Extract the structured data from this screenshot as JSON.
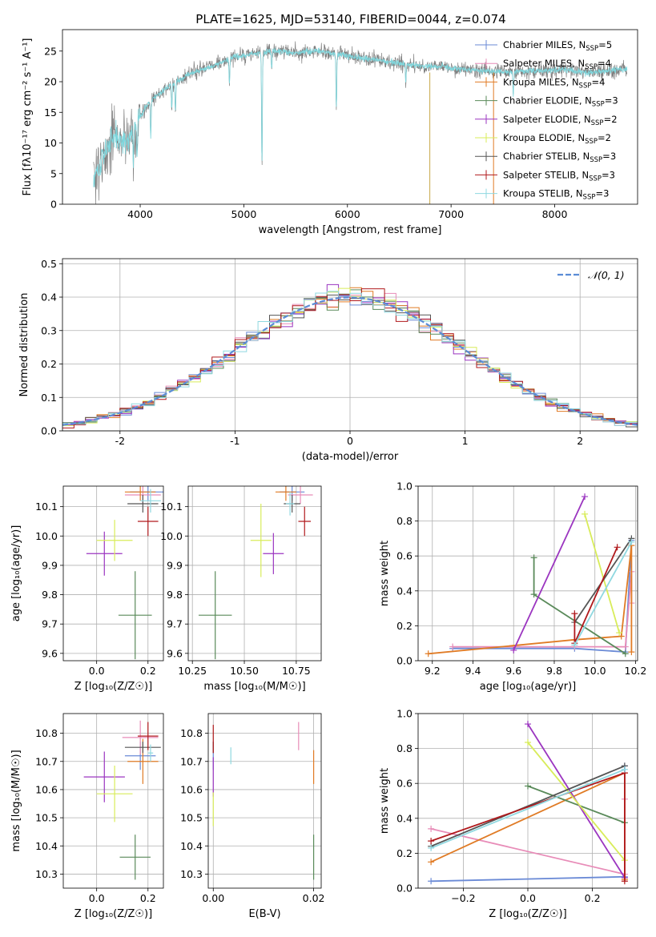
{
  "figure": {
    "title": "PLATE=1625, MJD=53140, FIBERID=0044, z=0.074"
  },
  "models": [
    {
      "name": "Chabrier MILES",
      "nssp": "5",
      "color": "#6a8ad6"
    },
    {
      "name": "Salpeter MILES",
      "nssp": "4",
      "color": "#e88cb8"
    },
    {
      "name": "Kroupa MILES",
      "nssp": "4",
      "color": "#e07b25"
    },
    {
      "name": "Chabrier ELODIE",
      "nssp": "3",
      "color": "#5a8a5a"
    },
    {
      "name": "Salpeter ELODIE",
      "nssp": "2",
      "color": "#9b35c0"
    },
    {
      "name": "Kroupa ELODIE",
      "nssp": "2",
      "color": "#d8ec5a"
    },
    {
      "name": "Chabrier STELIB",
      "nssp": "3",
      "color": "#555555"
    },
    {
      "name": "Salpeter STELIB",
      "nssp": "3",
      "color": "#b0191c"
    },
    {
      "name": "Kroupa STELIB",
      "nssp": "3",
      "color": "#8fd8e0"
    }
  ],
  "chart_data": [
    {
      "id": "spectrum",
      "type": "line",
      "xlabel": "wavelength [Angstrom, rest frame]",
      "ylabel": "Flux [fλ10⁻¹⁷ erg cm⁻² s⁻¹ A⁻¹]",
      "xlim": [
        3250,
        8800
      ],
      "ylim": [
        0,
        28.5
      ],
      "xticks": [
        4000,
        5000,
        6000,
        7000,
        8000
      ],
      "yticks": [
        0,
        5,
        10,
        15,
        20,
        25
      ],
      "legend": "right",
      "data_color": "#808080",
      "model_color": "#7fd6dc",
      "continuum": [
        [
          3550,
          4
        ],
        [
          3650,
          8
        ],
        [
          3750,
          11.5
        ],
        [
          3850,
          10
        ],
        [
          3950,
          13
        ],
        [
          4100,
          17
        ],
        [
          4300,
          19.5
        ],
        [
          4500,
          21.5
        ],
        [
          4700,
          22.5
        ],
        [
          4900,
          24
        ],
        [
          5100,
          24.5
        ],
        [
          5300,
          25
        ],
        [
          5500,
          24.7
        ],
        [
          5700,
          25
        ],
        [
          5900,
          24.5
        ],
        [
          6100,
          24
        ],
        [
          6300,
          23.5
        ],
        [
          6500,
          23
        ],
        [
          6700,
          22.5
        ],
        [
          6900,
          22.5
        ],
        [
          7100,
          22
        ],
        [
          7300,
          21.8
        ],
        [
          7500,
          21.5
        ],
        [
          7700,
          21.7
        ],
        [
          7900,
          21.8
        ],
        [
          8100,
          22
        ],
        [
          8300,
          21.5
        ],
        [
          8500,
          21.7
        ],
        [
          8700,
          22
        ]
      ],
      "absorption_features": [
        [
          3600,
          1
        ],
        [
          3934,
          6
        ],
        [
          3969,
          6
        ],
        [
          4102,
          6
        ],
        [
          4305,
          4
        ],
        [
          4340,
          5
        ],
        [
          4861,
          4
        ],
        [
          5175,
          18
        ],
        [
          5270,
          3
        ],
        [
          5893,
          9
        ],
        [
          6563,
          3
        ],
        [
          7600,
          4
        ]
      ],
      "spikes": [
        [
          6795,
          "#c8a84a"
        ],
        [
          7410,
          "#e07b25"
        ]
      ]
    },
    {
      "id": "residual-hist",
      "type": "bar",
      "xlabel": "(data-model)/error",
      "ylabel": "Normed distribution",
      "xlim": [
        -2.5,
        2.5
      ],
      "ylim": [
        0,
        0.515
      ],
      "xticks": [
        -2,
        -1,
        0,
        1,
        2
      ],
      "yticks": [
        0.0,
        0.1,
        0.2,
        0.3,
        0.4,
        0.5
      ],
      "grid": true,
      "legend": "top-right",
      "gaussian_label": "𝒩(0, 1)",
      "gaussian_color": "#5b8cd6",
      "bin_width": 0.1
    },
    {
      "id": "age-vs-Z",
      "type": "scatter",
      "xlabel": "Z [log₁₀(Z/Z☉)]",
      "ylabel": "age  [log₁₀(age/yr)]",
      "xlim": [
        -0.13,
        0.26
      ],
      "ylim": [
        9.575,
        10.17
      ],
      "xticks": [
        0.0,
        0.2
      ],
      "yticks": [
        9.6,
        9.7,
        9.8,
        9.9,
        10.0,
        10.1
      ],
      "grid": true,
      "points": [
        {
          "x": 0.2,
          "y": 10.15,
          "dx": 0.07,
          "dy": 0.03
        },
        {
          "x": 0.18,
          "y": 10.14,
          "dx": 0.07,
          "dy": 0.03
        },
        {
          "x": 0.17,
          "y": 10.15,
          "dx": 0.06,
          "dy": 0.03
        },
        {
          "x": 0.15,
          "y": 9.73,
          "dx": 0.065,
          "dy": 0.15
        },
        {
          "x": 0.03,
          "y": 9.94,
          "dx": 0.07,
          "dy": 0.075
        },
        {
          "x": 0.07,
          "y": 9.985,
          "dx": 0.07,
          "dy": 0.07
        },
        {
          "x": 0.18,
          "y": 10.11,
          "dx": 0.06,
          "dy": 0.03
        },
        {
          "x": 0.2,
          "y": 10.05,
          "dx": 0.04,
          "dy": 0.05
        },
        {
          "x": 0.21,
          "y": 10.12,
          "dx": 0.04,
          "dy": 0.04
        }
      ]
    },
    {
      "id": "age-vs-mass",
      "type": "scatter",
      "xlabel": "mass [log₁₀(M/M☉)]",
      "ylabel": "",
      "xlim": [
        10.23,
        10.87
      ],
      "ylim": [
        9.575,
        10.17
      ],
      "xticks": [
        10.25,
        10.5,
        10.75
      ],
      "yticks": [
        9.6,
        9.7,
        9.8,
        9.9,
        10.0,
        10.1
      ],
      "grid": true,
      "points": [
        {
          "x": 10.73,
          "y": 10.15,
          "dx": 0.06,
          "dy": 0.03
        },
        {
          "x": 10.77,
          "y": 10.14,
          "dx": 0.06,
          "dy": 0.03
        },
        {
          "x": 10.7,
          "y": 10.15,
          "dx": 0.05,
          "dy": 0.03
        },
        {
          "x": 10.36,
          "y": 9.73,
          "dx": 0.08,
          "dy": 0.15
        },
        {
          "x": 10.64,
          "y": 9.94,
          "dx": 0.05,
          "dy": 0.07
        },
        {
          "x": 10.58,
          "y": 9.985,
          "dx": 0.05,
          "dy": 0.125
        },
        {
          "x": 10.73,
          "y": 10.11,
          "dx": 0.04,
          "dy": 0.03
        },
        {
          "x": 10.79,
          "y": 10.05,
          "dx": 0.03,
          "dy": 0.05
        },
        {
          "x": 10.72,
          "y": 10.11,
          "dx": 0.02,
          "dy": 0.04
        }
      ]
    },
    {
      "id": "mass-weight-vs-age",
      "type": "line",
      "xlabel": "age  [log₁₀(age/yr)]",
      "ylabel": "mass weight",
      "xlim": [
        9.13,
        10.21
      ],
      "ylim": [
        0,
        1.0
      ],
      "xticks": [
        9.2,
        9.4,
        9.6,
        9.8,
        10.0,
        10.2
      ],
      "yticks": [
        0.0,
        0.2,
        0.4,
        0.6,
        0.8,
        1.0
      ],
      "grid": true,
      "series": [
        {
          "points": [
            [
              9.3,
              0.07
            ],
            [
              9.9,
              0.07
            ],
            [
              10.15,
              0.05
            ],
            [
              10.18,
              0.69
            ]
          ]
        },
        {
          "points": [
            [
              9.3,
              0.08
            ],
            [
              9.9,
              0.08
            ],
            [
              10.15,
              0.08
            ],
            [
              10.18,
              0.51
            ],
            [
              10.18,
              0.33
            ]
          ]
        },
        {
          "points": [
            [
              9.18,
              0.04
            ],
            [
              9.9,
              0.12
            ],
            [
              10.13,
              0.14
            ],
            [
              10.18,
              0.66
            ],
            [
              10.18,
              0.05
            ]
          ]
        },
        {
          "points": [
            [
              9.7,
              0.59
            ],
            [
              9.7,
              0.38
            ],
            [
              10.15,
              0.04
            ]
          ]
        },
        {
          "points": [
            [
              9.6,
              0.06
            ],
            [
              9.95,
              0.94
            ]
          ]
        },
        {
          "points": [
            [
              9.95,
              0.84
            ],
            [
              10.12,
              0.16
            ]
          ]
        },
        {
          "points": [
            [
              9.9,
              0.22
            ],
            [
              10.18,
              0.7
            ]
          ]
        },
        {
          "points": [
            [
              9.9,
              0.27
            ],
            [
              9.9,
              0.1
            ],
            [
              10.11,
              0.65
            ]
          ]
        },
        {
          "points": [
            [
              9.9,
              0.09
            ],
            [
              10.18,
              0.68
            ]
          ]
        }
      ]
    },
    {
      "id": "mass-vs-Z",
      "type": "scatter",
      "xlabel": "Z [log₁₀(Z/Z☉)]",
      "ylabel": "mass [log₁₀(M/M☉)]",
      "xlim": [
        -0.13,
        0.26
      ],
      "ylim": [
        10.25,
        10.87
      ],
      "xticks": [
        0.0,
        0.2
      ],
      "yticks": [
        10.3,
        10.4,
        10.5,
        10.6,
        10.7,
        10.8
      ],
      "grid": true,
      "points": [
        {
          "x": 0.17,
          "y": 10.72,
          "dx": 0.06,
          "dy": 0.05
        },
        {
          "x": 0.17,
          "y": 10.785,
          "dx": 0.07,
          "dy": 0.06
        },
        {
          "x": 0.18,
          "y": 10.7,
          "dx": 0.06,
          "dy": 0.08
        },
        {
          "x": 0.15,
          "y": 10.36,
          "dx": 0.06,
          "dy": 0.08
        },
        {
          "x": 0.03,
          "y": 10.645,
          "dx": 0.08,
          "dy": 0.09
        },
        {
          "x": 0.07,
          "y": 10.585,
          "dx": 0.07,
          "dy": 0.1
        },
        {
          "x": 0.18,
          "y": 10.75,
          "dx": 0.07,
          "dy": 0.02
        },
        {
          "x": 0.2,
          "y": 10.79,
          "dx": 0.04,
          "dy": 0.05
        },
        {
          "x": 0.21,
          "y": 10.73,
          "dx": 0.01,
          "dy": 0.03
        }
      ]
    },
    {
      "id": "mass-vs-EBV",
      "type": "scatter",
      "xlabel": "E(B-V)",
      "ylabel": "",
      "xlim": [
        -0.001,
        0.0215
      ],
      "ylim": [
        10.25,
        10.87
      ],
      "xticks": [
        0.0,
        0.02
      ],
      "yticks": [
        10.3,
        10.4,
        10.5,
        10.6,
        10.7,
        10.8
      ],
      "grid": true,
      "points": [
        {
          "x": 0.0,
          "y": 10.72,
          "dx": 0,
          "dy": 0.05
        },
        {
          "x": 0.017,
          "y": 10.79,
          "dx": 0,
          "dy": 0.05
        },
        {
          "x": 0.02,
          "y": 10.68,
          "dx": 0,
          "dy": 0.06
        },
        {
          "x": 0.02,
          "y": 10.36,
          "dx": 0,
          "dy": 0.08
        },
        {
          "x": 0.0,
          "y": 10.645,
          "dx": 0,
          "dy": 0.07
        },
        {
          "x": 0.0,
          "y": 10.53,
          "dx": 0,
          "dy": 0.06
        },
        {
          "x": 0.0,
          "y": 10.75,
          "dx": 0,
          "dy": 0.02
        },
        {
          "x": 0.0,
          "y": 10.78,
          "dx": 0,
          "dy": 0.05
        },
        {
          "x": 0.0035,
          "y": 10.72,
          "dx": 0,
          "dy": 0.03
        }
      ]
    },
    {
      "id": "mass-weight-vs-Z",
      "type": "line",
      "xlabel": "Z [log₁₀(Z/Z☉)]",
      "ylabel": "mass weight",
      "xlim": [
        -0.34,
        0.34
      ],
      "ylim": [
        0,
        1.0
      ],
      "xticks": [
        -0.2,
        0.0,
        0.2
      ],
      "yticks": [
        0.0,
        0.2,
        0.4,
        0.6,
        0.8,
        1.0
      ],
      "grid": true,
      "series": [
        {
          "points": [
            [
              -0.3,
              0.04
            ],
            [
              0.3,
              0.065
            ],
            [
              0.3,
              0.7
            ]
          ]
        },
        {
          "points": [
            [
              -0.3,
              0.34
            ],
            [
              0.3,
              0.08
            ],
            [
              0.3,
              0.51
            ]
          ]
        },
        {
          "points": [
            [
              -0.3,
              0.15
            ],
            [
              0.3,
              0.66
            ],
            [
              0.3,
              0.05
            ]
          ]
        },
        {
          "points": [
            [
              0.0,
              0.585
            ],
            [
              0.3,
              0.375
            ]
          ]
        },
        {
          "points": [
            [
              0.0,
              0.94
            ],
            [
              0.3,
              0.06
            ]
          ]
        },
        {
          "points": [
            [
              0.0,
              0.835
            ],
            [
              0.3,
              0.16
            ]
          ]
        },
        {
          "points": [
            [
              -0.3,
              0.24
            ],
            [
              0.3,
              0.7
            ]
          ]
        },
        {
          "points": [
            [
              -0.3,
              0.27
            ],
            [
              0.3,
              0.66
            ],
            [
              0.3,
              0.04
            ]
          ]
        },
        {
          "points": [
            [
              -0.3,
              0.23
            ],
            [
              0.3,
              0.68
            ]
          ]
        }
      ]
    }
  ]
}
